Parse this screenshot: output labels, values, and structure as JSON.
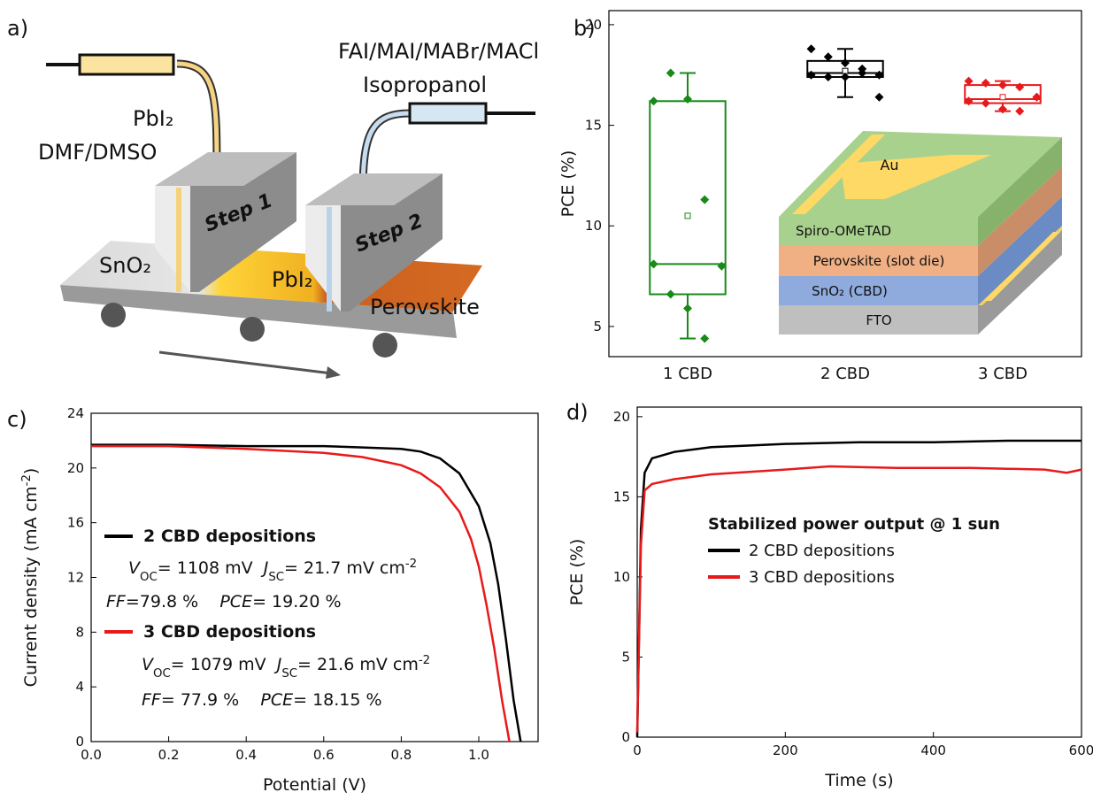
{
  "panel_labels": [
    "a)",
    "b)",
    "c)",
    "d)"
  ],
  "diagram": {
    "ink_1": [
      "PbI₂",
      "DMF/DMSO"
    ],
    "ink_2": [
      "FAI/MAI/MABr/MACl",
      "Isopropanol"
    ],
    "steps": [
      "Step 1",
      "Step 2"
    ],
    "zones": [
      "SnO₂",
      "PbI₂",
      "Perovskite"
    ]
  },
  "chart_data": [
    {
      "type": "box",
      "ylabel": "PCE (%)",
      "categories": [
        "1 CBD",
        "2 CBD",
        "3 CBD"
      ],
      "ylim": [
        3.5,
        20.7
      ],
      "yticks": [
        5,
        10,
        15,
        20
      ],
      "series": [
        {
          "color": "#178a17",
          "whisker_low": 4.4,
          "q1": 6.6,
          "median": 8.1,
          "q3": 16.2,
          "whisker_high": 17.6,
          "mean": 10.5,
          "points": [
            16.2,
            17.6,
            16.3,
            11.3,
            8.0,
            8.1,
            6.6,
            5.9,
            4.4
          ]
        },
        {
          "color": "#000000",
          "whisker_low": 16.4,
          "q1": 17.4,
          "median": 17.6,
          "q3": 18.2,
          "whisker_high": 18.8,
          "mean": 17.7,
          "points": [
            18.8,
            18.4,
            18.1,
            17.8,
            17.5,
            17.5,
            17.4,
            17.4,
            17.6,
            16.4
          ]
        },
        {
          "color": "#e8191b",
          "whisker_low": 15.7,
          "q1": 16.1,
          "median": 16.3,
          "q3": 17.0,
          "whisker_high": 17.2,
          "mean": 16.4,
          "points": [
            17.2,
            17.1,
            17.0,
            16.9,
            16.4,
            16.2,
            16.1,
            15.8,
            15.7,
            16.4
          ]
        }
      ],
      "inset_labels": [
        "Au",
        "Spiro-OMeTAD",
        "Perovskite (slot die)",
        "SnO₂ (CBD)",
        "FTO"
      ]
    },
    {
      "type": "line",
      "xlabel": "Potential (V)",
      "ylabel": [
        [
          "Current density (mA cm",
          ""
        ],
        [
          "-2",
          "sup"
        ],
        [
          ")",
          ""
        ]
      ],
      "xlim": [
        0,
        1.153
      ],
      "xticks": [
        {
          "value": 0,
          "label": "0.0"
        },
        0.2,
        0.4,
        0.6,
        0.8,
        {
          "value": 1,
          "label": "1.0"
        }
      ],
      "ylim": [
        0,
        24
      ],
      "yticks": [
        0,
        4,
        8,
        12,
        16,
        20,
        24
      ],
      "series": [
        {
          "name": "2 CBD depositions",
          "color": "#000000",
          "x": [
            0,
            0.2,
            0.4,
            0.6,
            0.7,
            0.8,
            0.85,
            0.9,
            0.95,
            1.0,
            1.03,
            1.05,
            1.07,
            1.09,
            1.108
          ],
          "values": [
            21.7,
            21.7,
            21.6,
            21.6,
            21.5,
            21.4,
            21.2,
            20.7,
            19.6,
            17.2,
            14.5,
            11.5,
            7.5,
            3.0,
            0
          ],
          "notes": [
            [
              [
                "V",
                "i"
              ],
              [
                "OC",
                "sub"
              ],
              [
                "= 1108 mV  ",
                ""
              ],
              [
                "J",
                "i"
              ],
              [
                "SC",
                "sub"
              ],
              [
                "= 21.7 mV cm",
                ""
              ],
              [
                "-2",
                "sup"
              ]
            ],
            [
              [
                "FF",
                "i"
              ],
              [
                "=79.8 %    ",
                ""
              ],
              [
                "PCE",
                "i"
              ],
              [
                "= 19.20 %",
                ""
              ]
            ]
          ]
        },
        {
          "name": "3 CBD depositions",
          "color": "#e8191b",
          "x": [
            0,
            0.2,
            0.4,
            0.6,
            0.7,
            0.8,
            0.85,
            0.9,
            0.95,
            0.98,
            1.0,
            1.02,
            1.04,
            1.06,
            1.079
          ],
          "values": [
            21.6,
            21.6,
            21.4,
            21.1,
            20.8,
            20.2,
            19.6,
            18.6,
            16.8,
            14.8,
            12.8,
            10.0,
            6.8,
            3.0,
            0
          ],
          "notes": [
            [
              [
                "V",
                "i"
              ],
              [
                "OC",
                "sub"
              ],
              [
                "= 1079 mV  ",
                ""
              ],
              [
                "J",
                "i"
              ],
              [
                "SC",
                "sub"
              ],
              [
                "= 21.6 mV cm",
                ""
              ],
              [
                "-2",
                "sup"
              ]
            ],
            [
              [
                "FF",
                "i"
              ],
              [
                "= 77.9 %    ",
                ""
              ],
              [
                "PCE",
                "i"
              ],
              [
                "= 18.15 %",
                ""
              ]
            ]
          ]
        }
      ]
    },
    {
      "type": "line",
      "xlabel": "Time (s)",
      "ylabel": [
        [
          "PCE (%)",
          ""
        ]
      ],
      "legend_title": "Stabilized power output @ 1 sun",
      "xlim": [
        0,
        600
      ],
      "xticks": [
        0,
        200,
        400,
        600
      ],
      "ylim": [
        0,
        20.6
      ],
      "yticks": [
        0,
        5,
        10,
        15,
        20
      ],
      "series": [
        {
          "name": "2 CBD depositions",
          "color": "#000000",
          "x": [
            0,
            5,
            10,
            20,
            50,
            100,
            150,
            200,
            300,
            400,
            500,
            600
          ],
          "values": [
            0,
            13,
            16.5,
            17.4,
            17.8,
            18.1,
            18.2,
            18.3,
            18.4,
            18.4,
            18.5,
            18.5
          ]
        },
        {
          "name": "3 CBD depositions",
          "color": "#e8191b",
          "x": [
            0,
            5,
            10,
            20,
            50,
            100,
            200,
            260,
            350,
            450,
            550,
            580,
            600
          ],
          "values": [
            0.3,
            12,
            15.4,
            15.8,
            16.1,
            16.4,
            16.7,
            16.9,
            16.8,
            16.8,
            16.7,
            16.5,
            16.7
          ]
        }
      ]
    }
  ]
}
